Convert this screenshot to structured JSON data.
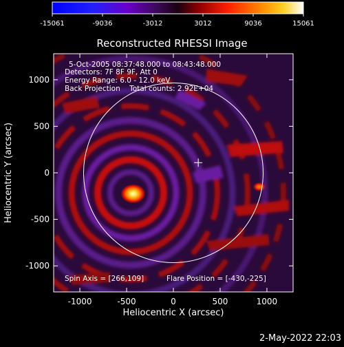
{
  "chart_data": {
    "type": "heatmap",
    "title": "Reconstructed RHESSI Image",
    "xlabel": "Heliocentric X (arcsec)",
    "ylabel": "Heliocentric Y (arcsec)",
    "xlim": [
      -1280,
      1280
    ],
    "ylim": [
      -1280,
      1280
    ],
    "x_ticks": [
      -1000,
      -500,
      0,
      500,
      1000
    ],
    "y_ticks": [
      -1000,
      -500,
      0,
      500,
      1000
    ],
    "colorbar": {
      "range": [
        -15061,
        15061
      ],
      "ticks": [
        {
          "value": -15061,
          "label": "-15061"
        },
        {
          "value": -9036,
          "label": "-9036"
        },
        {
          "value": -3012,
          "label": "-3012"
        },
        {
          "value": 3012,
          "label": "3012"
        },
        {
          "value": 9036,
          "label": "9036"
        },
        {
          "value": 15061,
          "label": "15061"
        }
      ]
    },
    "info_lines": [
      "5-Oct-2005 08:37:48.000 to 08:43:48.000",
      "Detectors: 7F 8F 9F, Att 0",
      "Energy Range: 6.0 - 12.0 keV",
      "Back Projection    Total counts: 2.92E+04"
    ],
    "footer_left": "Spin Axis = [266,109]",
    "footer_right": "Flare Position = [-430,-225]",
    "spin_axis": [
      266,
      109
    ],
    "flare_position": [
      -430,
      -225
    ],
    "solar_limb": {
      "center": [
        0,
        0
      ],
      "radius": 960
    },
    "sources": [
      {
        "x": -430,
        "y": -225,
        "intensity": 15061
      },
      {
        "x": 920,
        "y": -150,
        "intensity": 6000
      }
    ]
  },
  "timestamp": "2-May-2022 22:03"
}
